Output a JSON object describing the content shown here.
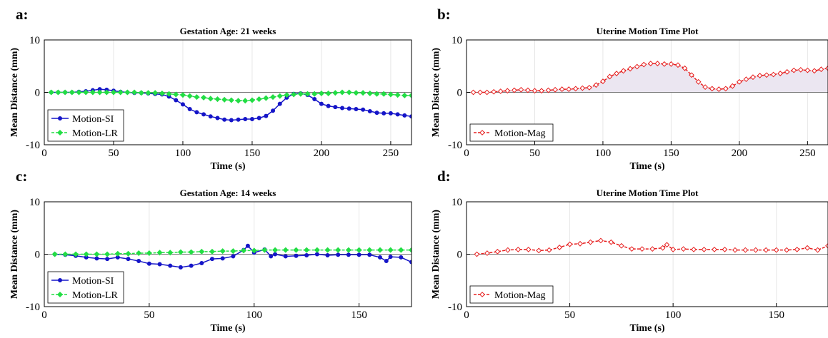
{
  "panels": [
    {
      "letter": "a:",
      "chart_data": {
        "type": "line",
        "title": "Gestation Age: 21 weeks",
        "xlabel": "Time (s)",
        "ylabel": "Mean Distance (mm)",
        "xlim": [
          0,
          265
        ],
        "ylim": [
          -10,
          10
        ],
        "xticks": [
          0,
          50,
          100,
          150,
          200,
          250
        ],
        "yticks": [
          -10,
          0,
          10
        ],
        "grid": "vertical",
        "legend": "bottom-left",
        "series": [
          {
            "name": "Motion-SI",
            "color": "#1515c8",
            "marker": "circle",
            "style": "solid",
            "x": [
              5,
              10,
              15,
              20,
              25,
              30,
              35,
              40,
              45,
              50,
              55,
              60,
              65,
              70,
              75,
              80,
              85,
              90,
              95,
              100,
              105,
              110,
              115,
              120,
              125,
              130,
              135,
              140,
              145,
              150,
              155,
              160,
              165,
              170,
              175,
              180,
              185,
              190,
              195,
              200,
              205,
              210,
              215,
              220,
              225,
              230,
              235,
              240,
              245,
              250,
              255,
              260,
              265
            ],
            "y": [
              0,
              0,
              0,
              0,
              0.1,
              0.2,
              0.4,
              0.6,
              0.5,
              0.3,
              0.1,
              0,
              -0.1,
              -0.1,
              -0.2,
              -0.3,
              -0.4,
              -0.8,
              -1.5,
              -2.3,
              -3.2,
              -3.8,
              -4.2,
              -4.6,
              -4.9,
              -5.2,
              -5.3,
              -5.2,
              -5.1,
              -5.1,
              -4.9,
              -4.5,
              -3.5,
              -2.2,
              -1.0,
              -0.3,
              -0.2,
              -0.5,
              -1.3,
              -2.2,
              -2.6,
              -2.8,
              -3.0,
              -3.1,
              -3.2,
              -3.3,
              -3.6,
              -3.9,
              -4.0,
              -4.0,
              -4.2,
              -4.4,
              -4.6
            ]
          },
          {
            "name": "Motion-LR",
            "color": "#22dd44",
            "marker": "diamond",
            "style": "dashed",
            "x": [
              5,
              10,
              15,
              20,
              25,
              30,
              35,
              40,
              45,
              50,
              55,
              60,
              65,
              70,
              75,
              80,
              85,
              90,
              95,
              100,
              105,
              110,
              115,
              120,
              125,
              130,
              135,
              140,
              145,
              150,
              155,
              160,
              165,
              170,
              175,
              180,
              185,
              190,
              195,
              200,
              205,
              210,
              215,
              220,
              225,
              230,
              235,
              240,
              245,
              250,
              255,
              260,
              265
            ],
            "y": [
              0,
              0,
              0,
              0,
              0,
              0,
              0,
              0,
              0,
              0,
              0,
              0,
              0,
              -0.1,
              -0.1,
              -0.1,
              -0.2,
              -0.3,
              -0.4,
              -0.5,
              -0.7,
              -0.9,
              -1.0,
              -1.2,
              -1.3,
              -1.4,
              -1.5,
              -1.6,
              -1.6,
              -1.5,
              -1.3,
              -1.1,
              -0.9,
              -0.7,
              -0.5,
              -0.4,
              -0.3,
              -0.3,
              -0.3,
              -0.2,
              -0.2,
              -0.1,
              0,
              0,
              -0.1,
              -0.1,
              -0.2,
              -0.3,
              -0.3,
              -0.4,
              -0.5,
              -0.6,
              -0.6
            ]
          }
        ]
      }
    },
    {
      "letter": "b:",
      "chart_data": {
        "type": "area",
        "title": "Uterine Motion Time Plot",
        "xlabel": "Time (s)",
        "ylabel": "Mean Distance (mm)",
        "xlim": [
          0,
          265
        ],
        "ylim": [
          -10,
          10
        ],
        "xticks": [
          0,
          50,
          100,
          150,
          200,
          250
        ],
        "yticks": [
          -10,
          0,
          10
        ],
        "grid": "vertical",
        "legend": "bottom-left",
        "fill_color": "#ebe6f1",
        "series": [
          {
            "name": "Motion-Mag",
            "color": "#e61e1e",
            "marker": "diamond-open",
            "style": "dashed",
            "x": [
              5,
              10,
              15,
              20,
              25,
              30,
              35,
              40,
              45,
              50,
              55,
              60,
              65,
              70,
              75,
              80,
              85,
              90,
              95,
              100,
              105,
              110,
              115,
              120,
              125,
              130,
              135,
              140,
              145,
              150,
              155,
              160,
              165,
              170,
              175,
              180,
              185,
              190,
              195,
              200,
              205,
              210,
              215,
              220,
              225,
              230,
              235,
              240,
              245,
              250,
              255,
              260,
              265
            ],
            "y": [
              0,
              0,
              0,
              0.1,
              0.2,
              0.3,
              0.4,
              0.5,
              0.4,
              0.3,
              0.3,
              0.4,
              0.5,
              0.6,
              0.6,
              0.7,
              0.8,
              0.9,
              1.4,
              2.1,
              3.0,
              3.6,
              4.1,
              4.5,
              4.9,
              5.3,
              5.5,
              5.5,
              5.4,
              5.4,
              5.2,
              4.6,
              3.3,
              2.0,
              1.0,
              0.7,
              0.6,
              0.7,
              1.2,
              2.0,
              2.5,
              2.9,
              3.2,
              3.3,
              3.4,
              3.6,
              3.9,
              4.2,
              4.3,
              4.2,
              4.1,
              4.4,
              4.6
            ]
          }
        ]
      }
    },
    {
      "letter": "c:",
      "chart_data": {
        "type": "line",
        "title": "Gestation Age: 14 weeks",
        "xlabel": "Time (s)",
        "ylabel": "Mean Distance (mm)",
        "xlim": [
          0,
          175
        ],
        "ylim": [
          -10,
          10
        ],
        "xticks": [
          0,
          50,
          100,
          150
        ],
        "yticks": [
          -10,
          0,
          10
        ],
        "grid": "vertical",
        "legend": "bottom-left",
        "series": [
          {
            "name": "Motion-SI",
            "color": "#1515c8",
            "marker": "circle",
            "style": "solid",
            "x": [
              5,
              10,
              15,
              20,
              25,
              30,
              35,
              40,
              45,
              50,
              55,
              60,
              65,
              70,
              75,
              80,
              85,
              90,
              95,
              97,
              100,
              105,
              108,
              110,
              115,
              120,
              125,
              130,
              135,
              140,
              145,
              150,
              155,
              160,
              163,
              165,
              170,
              175
            ],
            "y": [
              0,
              -0.1,
              -0.3,
              -0.6,
              -0.8,
              -0.9,
              -0.6,
              -0.9,
              -1.3,
              -1.8,
              -1.9,
              -2.2,
              -2.5,
              -2.2,
              -1.7,
              -0.9,
              -0.8,
              -0.4,
              0.8,
              1.6,
              0.3,
              0.9,
              -0.4,
              0.0,
              -0.4,
              -0.3,
              -0.2,
              0,
              -0.2,
              -0.1,
              -0.1,
              -0.1,
              -0.1,
              -0.6,
              -1.3,
              -0.5,
              -0.6,
              -1.5
            ]
          },
          {
            "name": "Motion-LR",
            "color": "#22dd44",
            "marker": "diamond",
            "style": "dashed",
            "x": [
              5,
              10,
              15,
              20,
              25,
              30,
              35,
              40,
              45,
              50,
              55,
              60,
              65,
              70,
              75,
              80,
              85,
              90,
              95,
              100,
              105,
              110,
              115,
              120,
              125,
              130,
              135,
              140,
              145,
              150,
              155,
              160,
              165,
              170,
              175
            ],
            "y": [
              0,
              0,
              0,
              0,
              0,
              0,
              0.1,
              0.1,
              0.2,
              0.2,
              0.3,
              0.3,
              0.4,
              0.4,
              0.5,
              0.5,
              0.6,
              0.6,
              0.7,
              0.7,
              0.8,
              0.8,
              0.8,
              0.8,
              0.8,
              0.8,
              0.8,
              0.8,
              0.8,
              0.8,
              0.8,
              0.8,
              0.8,
              0.8,
              0.8
            ]
          }
        ]
      }
    },
    {
      "letter": "d:",
      "chart_data": {
        "type": "line",
        "title": "Uterine Motion Time Plot",
        "xlabel": "Time (s)",
        "ylabel": "Mean Distance (mm)",
        "xlim": [
          0,
          175
        ],
        "ylim": [
          -10,
          10
        ],
        "xticks": [
          0,
          50,
          100,
          150
        ],
        "yticks": [
          -10,
          0,
          10
        ],
        "grid": "vertical",
        "legend": "bottom-left",
        "series": [
          {
            "name": "Motion-Mag",
            "color": "#e61e1e",
            "marker": "diamond-open",
            "style": "dashed",
            "x": [
              5,
              10,
              15,
              20,
              25,
              30,
              35,
              40,
              45,
              50,
              55,
              60,
              65,
              70,
              75,
              80,
              85,
              90,
              95,
              97,
              100,
              105,
              110,
              115,
              120,
              125,
              130,
              135,
              140,
              145,
              150,
              155,
              160,
              165,
              170,
              175
            ],
            "y": [
              0,
              0.2,
              0.5,
              0.8,
              0.9,
              0.9,
              0.7,
              0.8,
              1.3,
              1.9,
              2.0,
              2.3,
              2.6,
              2.3,
              1.6,
              1.0,
              1.0,
              1.0,
              1.2,
              1.8,
              0.9,
              1.0,
              0.9,
              0.9,
              0.9,
              0.9,
              0.8,
              0.8,
              0.8,
              0.8,
              0.8,
              0.8,
              0.9,
              1.2,
              0.8,
              1.6
            ]
          }
        ]
      }
    }
  ]
}
